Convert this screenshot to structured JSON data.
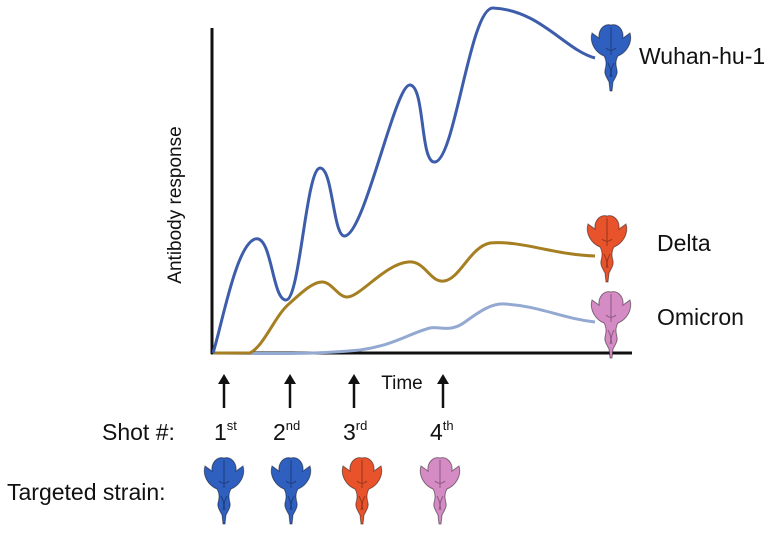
{
  "axes": {
    "ylabel": "Antibody response",
    "xlabel": "Time"
  },
  "colors": {
    "wuhan": "#3d5dab",
    "delta": "#a57f22",
    "omicron": "#93a9d1",
    "spike_blue": "#2f5fbf",
    "spike_red": "#e9532c",
    "spike_pink": "#d58bc4",
    "axis": "#111111"
  },
  "strains": [
    {
      "label": "Wuhan-hu-1",
      "icon": "spike-protein-blue-icon"
    },
    {
      "label": "Delta",
      "icon": "spike-protein-red-icon"
    },
    {
      "label": "Omicron",
      "icon": "spike-protein-pink-icon"
    }
  ],
  "shots": {
    "label": "Shot #:",
    "targeted_label": "Targeted strain:",
    "items": [
      {
        "num": "1",
        "suffix": "st",
        "strain": "Wuhan-hu-1"
      },
      {
        "num": "2",
        "suffix": "nd",
        "strain": "Wuhan-hu-1"
      },
      {
        "num": "3",
        "suffix": "rd",
        "strain": "Delta"
      },
      {
        "num": "4",
        "suffix": "th",
        "strain": "Omicron"
      }
    ]
  }
}
